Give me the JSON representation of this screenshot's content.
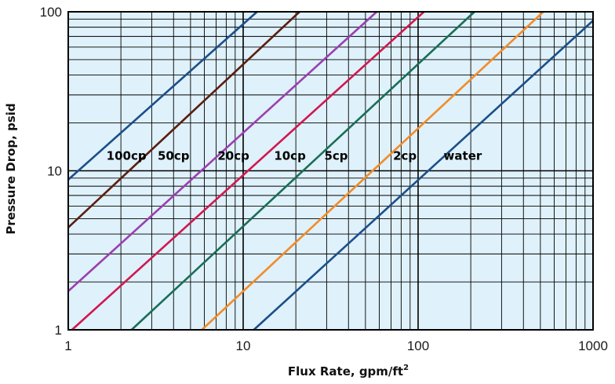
{
  "chart_data": {
    "type": "line",
    "scale": "log-log",
    "xlabel": "Flux Rate, gpm/ft",
    "xlabel_superscript": "2",
    "ylabel": "Pressure Drop, psid",
    "xlim": [
      1,
      1000
    ],
    "ylim": [
      1,
      100
    ],
    "x_ticks": [
      "1",
      "10",
      "100",
      "1000"
    ],
    "y_ticks": [
      "1",
      "10",
      "100"
    ],
    "grid": true,
    "plot_background": "#dff1fa",
    "series": [
      {
        "name": "100cp",
        "color": "#1b4f8a",
        "x": [
          1,
          12
        ],
        "y": [
          8.8,
          100
        ]
      },
      {
        "name": "50cp",
        "color": "#5a1f10",
        "x": [
          1,
          21
        ],
        "y": [
          4.4,
          100
        ]
      },
      {
        "name": "20cp",
        "color": "#9b3fb0",
        "x": [
          1,
          58
        ],
        "y": [
          1.75,
          100
        ]
      },
      {
        "name": "10cp",
        "color": "#d0184f",
        "x": [
          1.05,
          108
        ],
        "y": [
          1,
          100
        ]
      },
      {
        "name": "5cp",
        "color": "#1a6e56",
        "x": [
          2.3,
          210
        ],
        "y": [
          1,
          100
        ]
      },
      {
        "name": "2cp",
        "color": "#f28c28",
        "x": [
          5.8,
          520
        ],
        "y": [
          1,
          100
        ]
      },
      {
        "name": "water",
        "color": "#1b4f8a",
        "x": [
          11.5,
          1000
        ],
        "y": [
          1,
          88
        ]
      }
    ],
    "labels": [
      {
        "text": "100cp",
        "x": 2.15,
        "y": 10
      },
      {
        "text": "50cp",
        "x": 4.0,
        "y": 10
      },
      {
        "text": "20cp",
        "x": 8.8,
        "y": 10
      },
      {
        "text": "10cp",
        "x": 18.5,
        "y": 10
      },
      {
        "text": "5cp",
        "x": 34,
        "y": 10
      },
      {
        "text": "2cp",
        "x": 84,
        "y": 10
      },
      {
        "text": "water",
        "x": 180,
        "y": 10
      }
    ]
  }
}
